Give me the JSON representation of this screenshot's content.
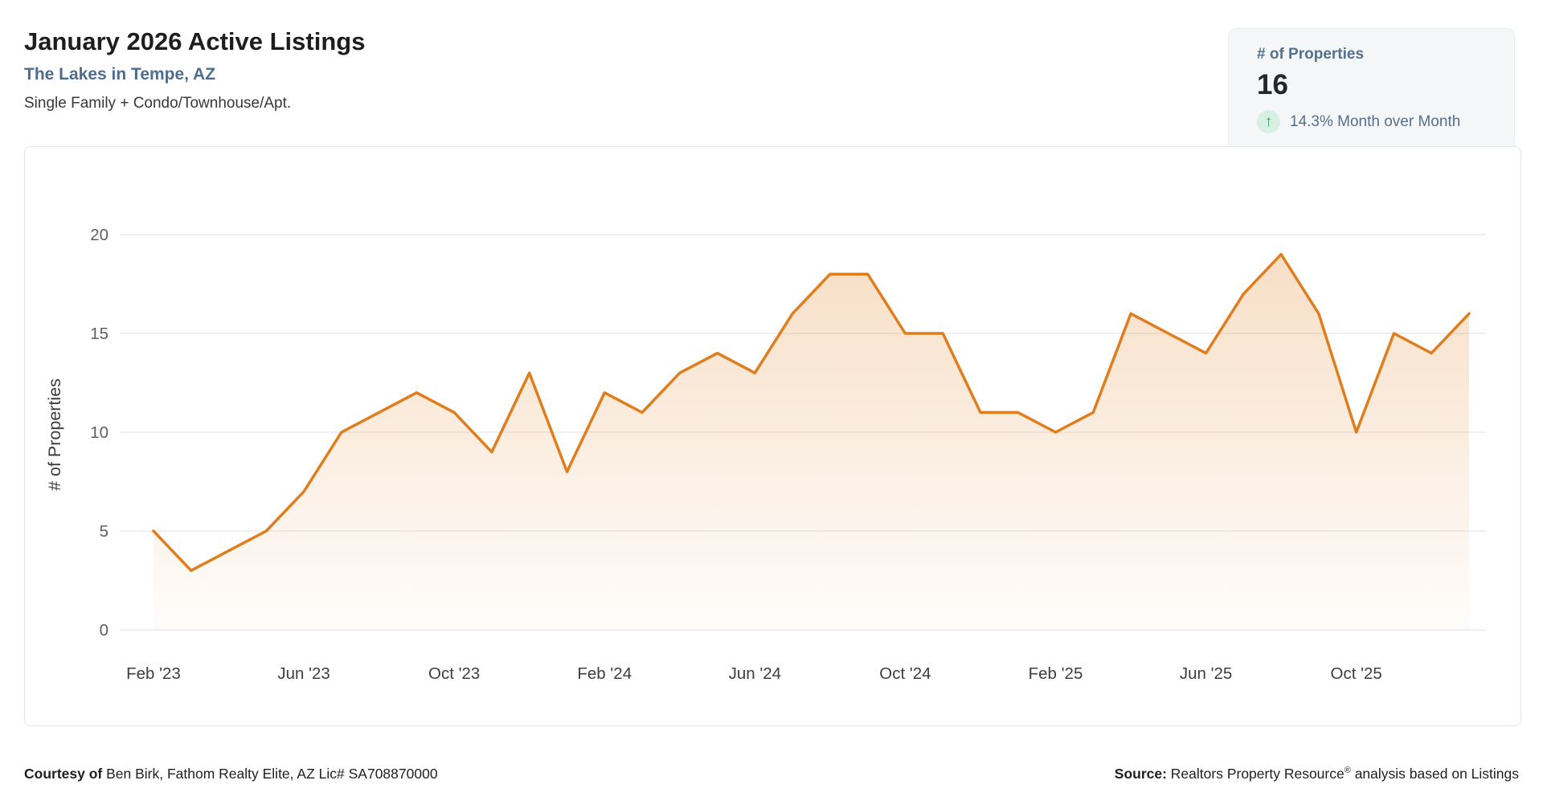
{
  "header": {
    "title": "January 2026 Active Listings",
    "subtitle": "The Lakes in Tempe, AZ",
    "property_types": "Single Family + Condo/Townhouse/Apt."
  },
  "stat_card": {
    "label": "# of Properties",
    "value": "16",
    "trend_icon": "arrow-up-icon",
    "trend_direction": "up",
    "change_text": "14.3% Month over Month",
    "trend_color": "#27a05c",
    "trend_bg_color": "#d7f0e2"
  },
  "chart_data": {
    "type": "area",
    "title": "January 2026 Active Listings",
    "x": [
      "Feb '23",
      "Mar '23",
      "Apr '23",
      "May '23",
      "Jun '23",
      "Jul '23",
      "Aug '23",
      "Sep '23",
      "Oct '23",
      "Nov '23",
      "Dec '23",
      "Jan '24",
      "Feb '24",
      "Mar '24",
      "Apr '24",
      "May '24",
      "Jun '24",
      "Jul '24",
      "Aug '24",
      "Sep '24",
      "Oct '24",
      "Nov '24",
      "Dec '24",
      "Jan '25",
      "Feb '25",
      "Mar '25",
      "Apr '25",
      "May '25",
      "Jun '25",
      "Jul '25",
      "Aug '25",
      "Sep '25",
      "Oct '25",
      "Nov '25",
      "Dec '25",
      "Jan '26"
    ],
    "values": [
      5,
      3,
      4,
      5,
      7,
      10,
      11,
      12,
      11,
      9,
      13,
      8,
      12,
      11,
      13,
      14,
      13,
      16,
      18,
      18,
      15,
      15,
      11,
      11,
      10,
      11,
      16,
      15,
      14,
      17,
      19,
      16,
      10,
      15,
      14,
      16
    ],
    "x_tick_labels": [
      "Feb '23",
      "Jun '23",
      "Oct '23",
      "Feb '24",
      "Jun '24",
      "Oct '24",
      "Feb '25",
      "Jun '25",
      "Oct '25"
    ],
    "x_tick_interval": 4,
    "xlabel": "",
    "ylabel": "# of Properties",
    "yticks": [
      0,
      5,
      10,
      15,
      20
    ],
    "ylim": [
      0,
      20
    ],
    "grid": true,
    "legend": false,
    "line_color": "#e07d1d",
    "area_fill_color": "#e07d1d",
    "grid_color": "#e8e8e8",
    "axis_label_color": "#3d3d3d",
    "ytick_label_color": "#5f5f5f"
  },
  "footer": {
    "courtesy_label": "Courtesy of",
    "courtesy_text": "Ben Birk, Fathom Realty Elite, AZ Lic# SA708870000",
    "source_label": "Source:",
    "source_text_before_reg": "Realtors Property Resource",
    "source_reg_mark": "®",
    "source_text_after_reg": "analysis based on Listings"
  }
}
